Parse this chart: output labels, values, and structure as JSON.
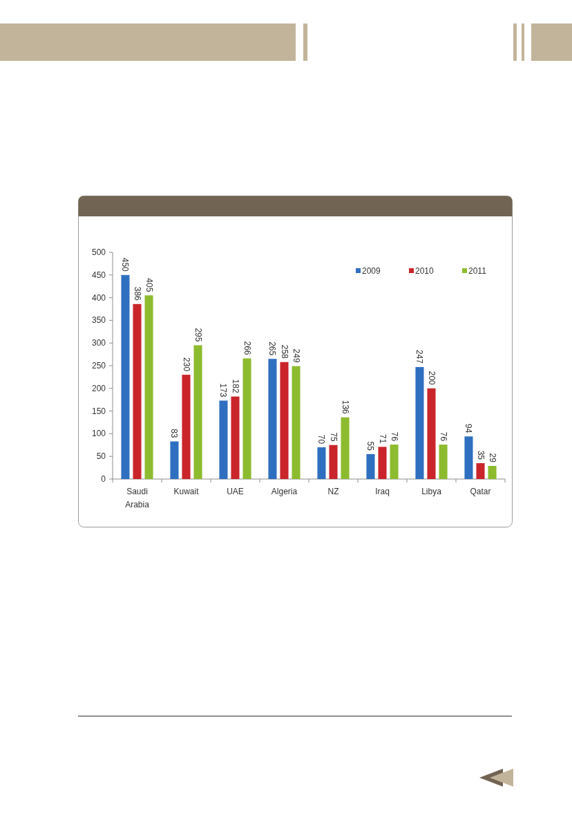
{
  "chart_data": {
    "type": "bar",
    "categories": [
      "Saudi Arabia",
      "Kuwait",
      "UAE",
      "Algeria",
      "NZ",
      "Iraq",
      "Libya",
      "Qatar"
    ],
    "series": [
      {
        "name": "2009",
        "color": "#2f6fc0",
        "values": [
          450,
          83,
          173,
          265,
          70,
          55,
          247,
          94
        ]
      },
      {
        "name": "2010",
        "color": "#c9252b",
        "values": [
          386,
          230,
          182,
          258,
          75,
          71,
          200,
          35
        ]
      },
      {
        "name": "2011",
        "color": "#8dbb2f",
        "values": [
          405,
          295,
          266,
          249,
          136,
          76,
          76,
          29
        ]
      }
    ],
    "ylim": [
      0,
      500
    ],
    "yticks": [
      0,
      50,
      100,
      150,
      200,
      250,
      300,
      350,
      400,
      450,
      500
    ],
    "data_labels": true,
    "legend": "top right"
  }
}
